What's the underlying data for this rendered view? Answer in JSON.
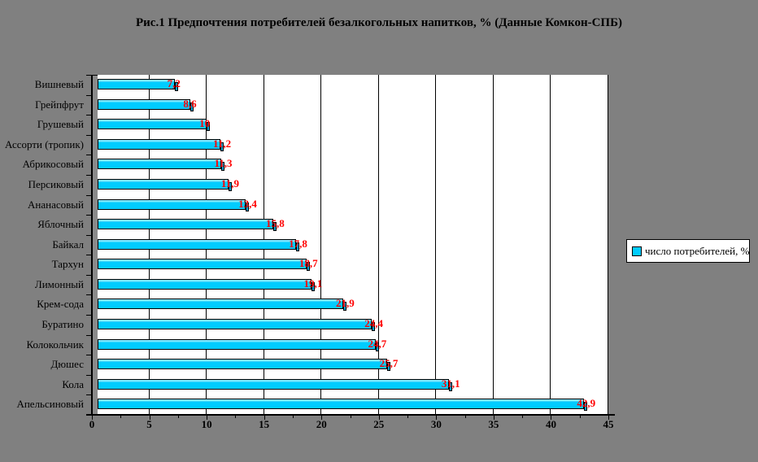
{
  "title": "Рис.1 Предпочтения потребителей безалкогольных напитков, % (Данные Комкон-СПБ)",
  "legend": {
    "label": "число потребителей, %",
    "swatch_color": "#00ccff"
  },
  "colors": {
    "chart_background": "#808080",
    "plot_background": "#ffffff",
    "bar_fill": "#00ccff",
    "bar_cap": "#00a0cf",
    "bar_border": "#000000",
    "value_label": "#ff0000",
    "gridline": "#000000"
  },
  "chart_data": {
    "type": "bar",
    "orientation": "horizontal",
    "title": "Рис.1 Предпочтения потребителей безалкогольных напитков, % (Данные Комкон-СПБ)",
    "legend_entries": [
      "число потребителей, %"
    ],
    "legend_position": "right",
    "grid": "vertical major gridlines every 5",
    "categories": [
      "Вишневый",
      "Грейпфрут",
      "Грушевый",
      "Ассорти (тропик)",
      "Абрикосовый",
      "Персиковый",
      "Ананасовый",
      "Яблочный",
      "Байкал",
      "Тархун",
      "Лимонный",
      "Крем-сода",
      "Буратино",
      "Колокольчик",
      "Дюшес",
      "Кола",
      "Апельсиновый"
    ],
    "values": [
      7.2,
      8.6,
      10,
      11.2,
      11.3,
      11.9,
      13.4,
      15.8,
      17.8,
      18.7,
      19.1,
      21.9,
      24.4,
      24.7,
      25.7,
      31.1,
      42.9
    ],
    "value_labels": [
      "7,2",
      "8,6",
      "10",
      "11,2",
      "11,3",
      "11,9",
      "13,4",
      "15,8",
      "17,8",
      "18,7",
      "19,1",
      "21,9",
      "24,4",
      "24,7",
      "25,7",
      "31,1",
      "42,9"
    ],
    "x_ticks": [
      0,
      5,
      10,
      15,
      20,
      25,
      30,
      35,
      40,
      45
    ],
    "x_tick_labels": [
      "0",
      "5",
      "10",
      "15",
      "20",
      "25",
      "30",
      "35",
      "40",
      "45"
    ],
    "xlim": [
      0,
      45
    ],
    "xlabel": "",
    "ylabel": ""
  }
}
